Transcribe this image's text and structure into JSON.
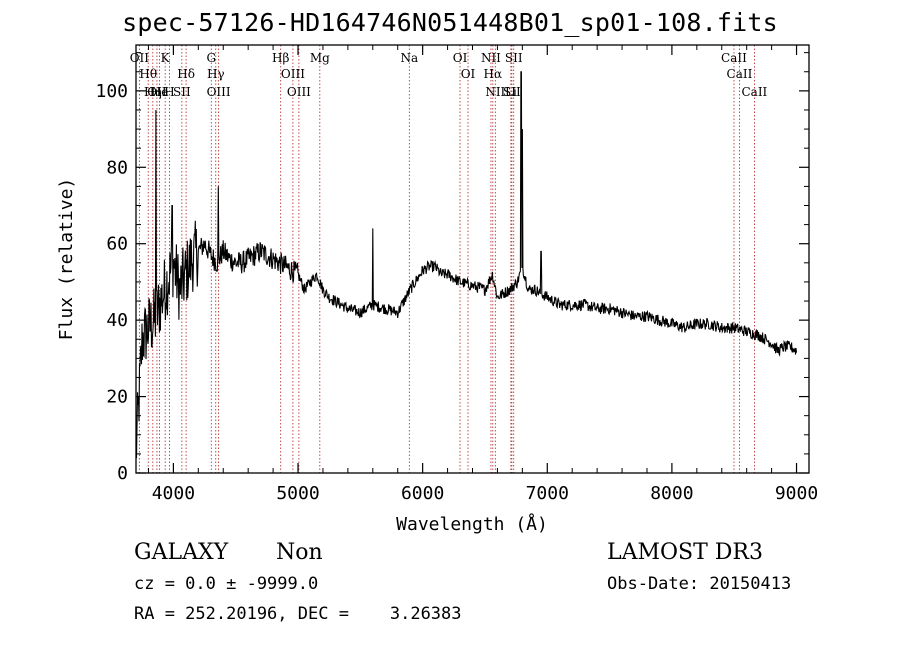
{
  "title": "spec-57126-HD164746N051448B01_sp01-108.fits",
  "info": {
    "class_label": "GALAXY",
    "subclass_label": "Non",
    "survey": "LAMOST DR3",
    "cz": "cz = 0.0 ± -9999.0",
    "obs_date": "Obs-Date: 20150413",
    "radec": "RA = 252.20196, DEC =    3.26383"
  },
  "chart_data": {
    "type": "line",
    "xlabel": "Wavelength (Å)",
    "ylabel": "Flux (relative)",
    "xlim": [
      3700,
      9100
    ],
    "ylim": [
      0,
      112
    ],
    "xticks": [
      4000,
      5000,
      6000,
      7000,
      8000,
      9000
    ],
    "yticks": [
      0,
      20,
      40,
      60,
      80,
      100
    ],
    "series": [
      {
        "x": [
          3700,
          3750,
          3800,
          3850,
          3900,
          3950,
          4000,
          4050,
          4100,
          4150,
          4200,
          4250,
          4300,
          4350,
          4400,
          4450,
          4500,
          4550,
          4600,
          4700,
          4800,
          4900,
          5000,
          5050,
          5100,
          5150,
          5200,
          5250,
          5300,
          5400,
          5500,
          5600,
          5700,
          5800,
          5900,
          6000,
          6050,
          6100,
          6150,
          6200,
          6300,
          6400,
          6500,
          6560,
          6600,
          6700,
          6760,
          6790,
          6800,
          6850,
          6900,
          6950,
          7000,
          7100,
          7200,
          7300,
          7400,
          7500,
          7600,
          7700,
          7800,
          7900,
          8000,
          8100,
          8200,
          8300,
          8400,
          8500,
          8600,
          8700,
          8750,
          8800,
          8850,
          8900,
          8950,
          9000
        ],
        "y": [
          5,
          35,
          38,
          40,
          45,
          50,
          55,
          48,
          52,
          56,
          58,
          60,
          57,
          55,
          58,
          56,
          55,
          55,
          56,
          58,
          56,
          54,
          52,
          48,
          50,
          52,
          48,
          46,
          45,
          43,
          42,
          44,
          43,
          42,
          48,
          53,
          54,
          54,
          52,
          52,
          50,
          49,
          48,
          52,
          46,
          48,
          50,
          53,
          54,
          48,
          48,
          47,
          46,
          44,
          44,
          44,
          43,
          43,
          42,
          41,
          41,
          40,
          39,
          38,
          39,
          39,
          38,
          38,
          37,
          36,
          35,
          34,
          32,
          33,
          33,
          32
        ]
      }
    ],
    "annotations": {
      "note": "Line identification markers (vertical dotted lines) labelled above the plot",
      "lines": [
        {
          "name": "OII",
          "wave": 3727
        },
        {
          "name": "Hθ",
          "wave": 3798
        },
        {
          "name": "Hη",
          "wave": 3835
        },
        {
          "name": "OII",
          "wave": 3868
        },
        {
          "name": "He",
          "wave": 3889
        },
        {
          "name": "K",
          "wave": 3934
        },
        {
          "name": "H",
          "wave": 3969
        },
        {
          "name": "Hδ",
          "wave": 4102
        },
        {
          "name": "SII",
          "wave": 4068
        },
        {
          "name": "G",
          "wave": 4304
        },
        {
          "name": "Hγ",
          "wave": 4340
        },
        {
          "name": "OIII",
          "wave": 4363
        },
        {
          "name": "Hβ",
          "wave": 4861
        },
        {
          "name": "OIII",
          "wave": 4959
        },
        {
          "name": "OIII",
          "wave": 5007
        },
        {
          "name": "Mg",
          "wave": 5175
        },
        {
          "name": "Na",
          "wave": 5893
        },
        {
          "name": "OI",
          "wave": 6300
        },
        {
          "name": "OI",
          "wave": 6364
        },
        {
          "name": "NII",
          "wave": 6548
        },
        {
          "name": "Hα",
          "wave": 6563
        },
        {
          "name": "NII",
          "wave": 6583
        },
        {
          "name": "Li",
          "wave": 6708
        },
        {
          "name": "SII",
          "wave": 6716
        },
        {
          "name": "SII",
          "wave": 6731
        },
        {
          "name": "CaII",
          "wave": 8498
        },
        {
          "name": "CaII",
          "wave": 8542
        },
        {
          "name": "CaII",
          "wave": 8662
        }
      ]
    }
  }
}
